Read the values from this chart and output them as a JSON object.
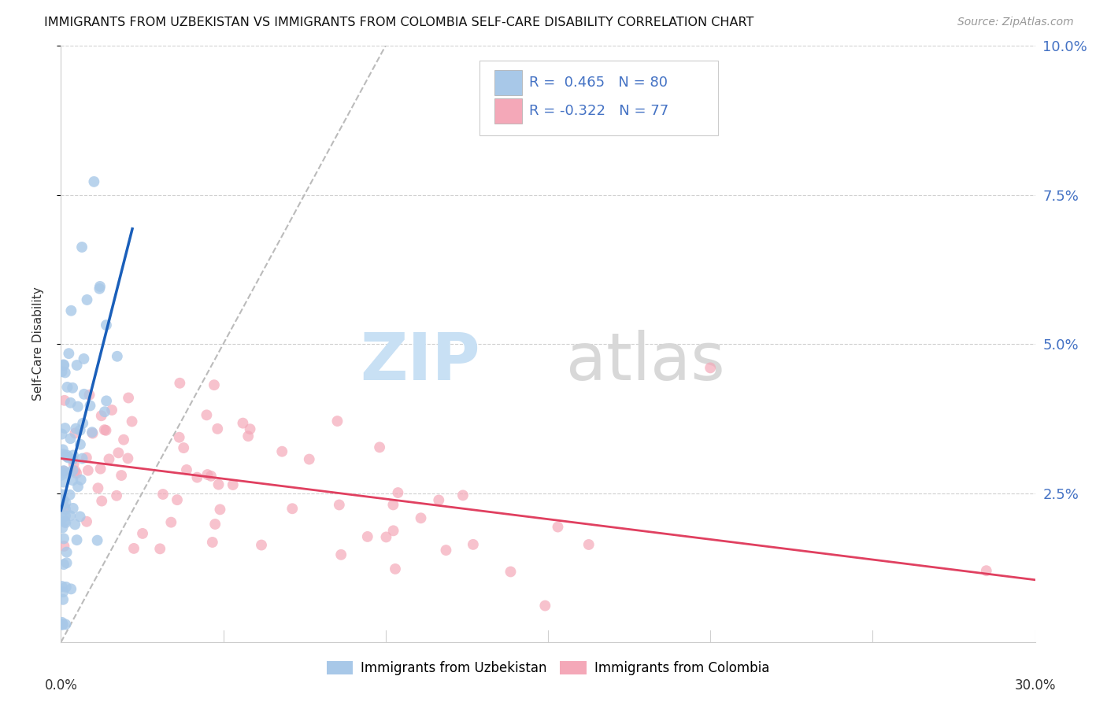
{
  "title": "IMMIGRANTS FROM UZBEKISTAN VS IMMIGRANTS FROM COLOMBIA SELF-CARE DISABILITY CORRELATION CHART",
  "source": "Source: ZipAtlas.com",
  "ylabel": "Self-Care Disability",
  "xmin": 0.0,
  "xmax": 0.3,
  "ymin": 0.0,
  "ymax": 0.1,
  "R_uzbekistan": 0.465,
  "N_uzbekistan": 80,
  "R_colombia": -0.322,
  "N_colombia": 77,
  "color_uzbekistan": "#a8c8e8",
  "color_colombia": "#f4a8b8",
  "line_color_uzbekistan": "#1a5fba",
  "line_color_colombia": "#e04060",
  "tick_color_right": "#4472c4",
  "watermark_zip_color": "#c8e0f4",
  "watermark_atlas_color": "#d8d8d8",
  "grid_color": "#d0d0d0",
  "right_yticks": [
    0.025,
    0.05,
    0.075,
    0.1
  ],
  "right_yticklabels": [
    "2.5%",
    "5.0%",
    "7.5%",
    "10.0%"
  ],
  "seed": 42
}
